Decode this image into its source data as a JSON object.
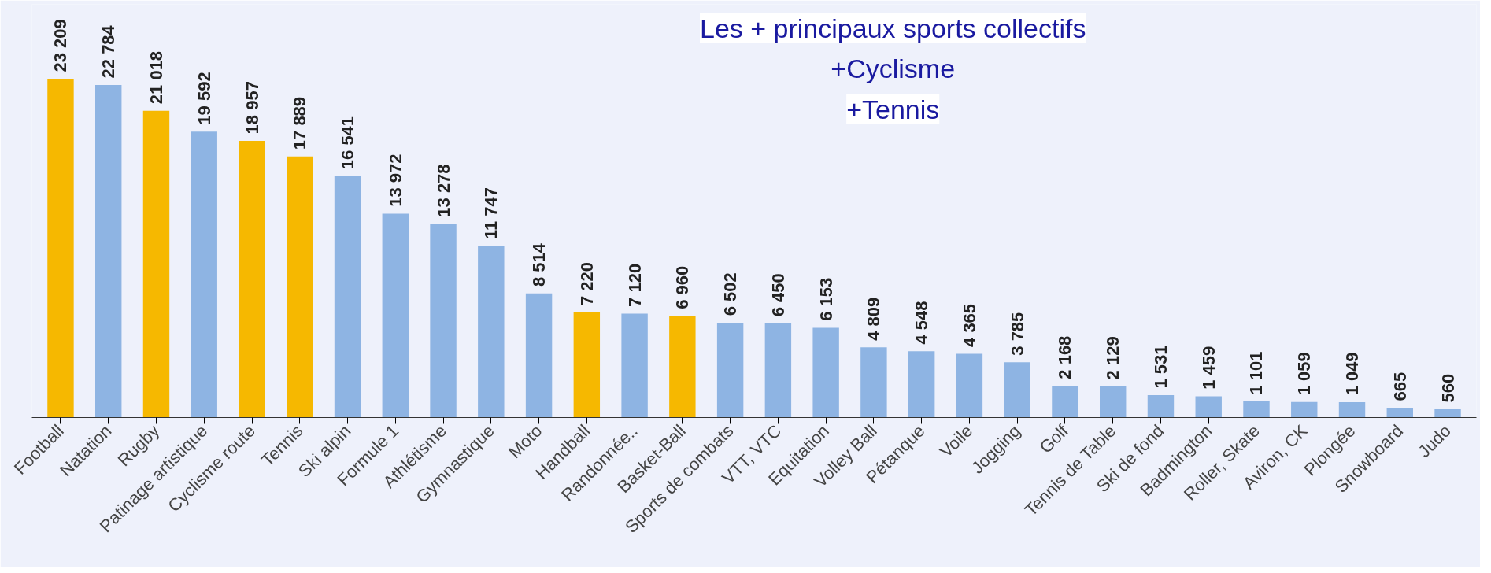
{
  "chart_data": {
    "type": "bar",
    "categories": [
      "Football",
      "Natation",
      "Rugby",
      "Patinage artistique",
      "Cyclisme route",
      "Tennis",
      "Ski alpin",
      "Formule 1",
      "Athlétisme",
      "Gymnastique",
      "Moto",
      "Handball",
      "Randonnée..",
      "Basket-Ball",
      "Sports de combats",
      "VTT, VTC",
      "Equitation",
      "Volley Ball",
      "Pétanque",
      "Voile",
      "Jogging",
      "Golf",
      "Tennis de Table",
      "Ski de fond",
      "Badmington",
      "Roller, Skate",
      "Aviron, CK",
      "Plongée",
      "Snowboard",
      "Judo"
    ],
    "values": [
      23209,
      22784,
      21018,
      19592,
      18957,
      17889,
      16541,
      13972,
      13278,
      11747,
      8514,
      7220,
      7120,
      6960,
      6502,
      6450,
      6153,
      4809,
      4548,
      4365,
      3785,
      2168,
      2129,
      1531,
      1459,
      1101,
      1059,
      1049,
      665,
      560
    ],
    "colors": [
      "#f6b800",
      "#8eb4e3",
      "#f6b800",
      "#8eb4e3",
      "#f6b800",
      "#f6b800",
      "#8eb4e3",
      "#8eb4e3",
      "#8eb4e3",
      "#8eb4e3",
      "#8eb4e3",
      "#f6b800",
      "#8eb4e3",
      "#f6b800",
      "#8eb4e3",
      "#8eb4e3",
      "#8eb4e3",
      "#8eb4e3",
      "#8eb4e3",
      "#8eb4e3",
      "#8eb4e3",
      "#8eb4e3",
      "#8eb4e3",
      "#8eb4e3",
      "#8eb4e3",
      "#8eb4e3",
      "#8eb4e3",
      "#8eb4e3",
      "#8eb4e3",
      "#8eb4e3"
    ],
    "value_labels": [
      "23 209",
      "22 784",
      "21 018",
      "19 592",
      "18 957",
      "17 889",
      "16 541",
      "13 972",
      "13 278",
      "11 747",
      "8 514",
      "7 220",
      "7 120",
      "6 960",
      "6 502",
      "6 450",
      "6 153",
      "4 809",
      "4 548",
      "4 365",
      "3 785",
      "2 168",
      "2 129",
      "1 531",
      "1 459",
      "1 101",
      "1 059",
      "1 049",
      "665",
      "560"
    ],
    "annotations": [
      "Les + principaux sports collectifs",
      "+Cyclisme",
      "+Tennis"
    ]
  }
}
